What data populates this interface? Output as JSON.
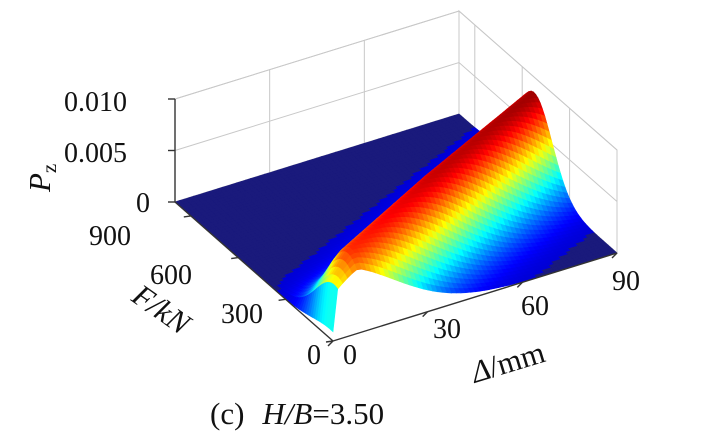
{
  "chart_data": {
    "type": "surface3d",
    "panel_label": "(c)",
    "caption_param": "H/B",
    "caption_value": "=3.50",
    "zlabel_main": "P",
    "zlabel_sub": "z",
    "ylabel": "F/kN",
    "xlabel_symbol": "Δ",
    "xlabel_unit": "/mm",
    "x_ticks": [
      "0",
      "30",
      "60",
      "90"
    ],
    "y_ticks": [
      "0",
      "300",
      "600",
      "900"
    ],
    "z_ticks": [
      "0",
      "0.005",
      "0.010"
    ],
    "xlim": [
      0,
      90
    ],
    "ylim": [
      0,
      1000
    ],
    "zlim": [
      0,
      0.01
    ],
    "colormap": "jet",
    "base_color": "#1a1a7c",
    "ridge": {
      "description_x_range_mm": [
        0,
        90
      ],
      "load_center_kN": [
        [
          0,
          15
        ],
        [
          90,
          525
        ]
      ],
      "width_kN": 170,
      "height": [
        [
          0,
          0.0045
        ],
        [
          8,
          0.0072
        ],
        [
          45,
          0.0081
        ],
        [
          90,
          0.0085
        ]
      ]
    }
  }
}
